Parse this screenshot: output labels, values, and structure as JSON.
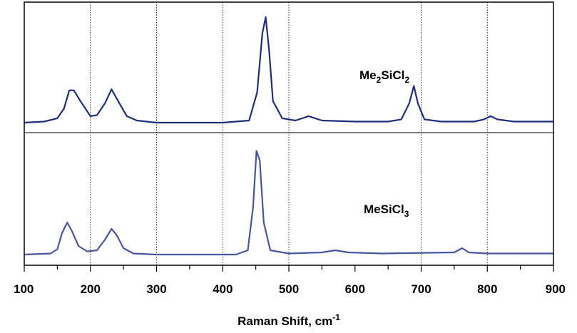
{
  "chart_data": {
    "type": "line",
    "title": "",
    "xlabel": "Raman Shift, cm",
    "xlabel_superscript": "-1",
    "ylabel": "",
    "xlim": [
      100,
      900
    ],
    "x_ticks": [
      "100",
      "200",
      "300",
      "400",
      "500",
      "600",
      "700",
      "800",
      "900"
    ],
    "grid": "vertical dotted lines at 200, 300, 400, 500, 700, 800",
    "series": [
      {
        "name": "Me2SiCl2",
        "label_parts": [
          "Me",
          "2",
          "SiCl",
          "2"
        ],
        "color": "#1f2f7a",
        "points": [
          [
            100,
            0.02
          ],
          [
            130,
            0.03
          ],
          [
            150,
            0.06
          ],
          [
            160,
            0.15
          ],
          [
            168,
            0.32
          ],
          [
            175,
            0.32
          ],
          [
            185,
            0.22
          ],
          [
            200,
            0.08
          ],
          [
            210,
            0.09
          ],
          [
            222,
            0.2
          ],
          [
            232,
            0.33
          ],
          [
            242,
            0.22
          ],
          [
            255,
            0.08
          ],
          [
            270,
            0.04
          ],
          [
            300,
            0.02
          ],
          [
            400,
            0.02
          ],
          [
            440,
            0.04
          ],
          [
            452,
            0.3
          ],
          [
            460,
            0.85
          ],
          [
            465,
            1.0
          ],
          [
            470,
            0.7
          ],
          [
            476,
            0.22
          ],
          [
            490,
            0.06
          ],
          [
            510,
            0.04
          ],
          [
            530,
            0.08
          ],
          [
            550,
            0.04
          ],
          [
            600,
            0.03
          ],
          [
            650,
            0.03
          ],
          [
            670,
            0.05
          ],
          [
            682,
            0.2
          ],
          [
            689,
            0.36
          ],
          [
            695,
            0.2
          ],
          [
            705,
            0.05
          ],
          [
            730,
            0.03
          ],
          [
            780,
            0.03
          ],
          [
            795,
            0.05
          ],
          [
            805,
            0.08
          ],
          [
            815,
            0.05
          ],
          [
            840,
            0.03
          ],
          [
            900,
            0.03
          ]
        ]
      },
      {
        "name": "MeSiCl3",
        "label_parts": [
          "MeSiCl",
          "3"
        ],
        "color": "#4a55a0",
        "points": [
          [
            100,
            0.0
          ],
          [
            140,
            0.01
          ],
          [
            150,
            0.05
          ],
          [
            157,
            0.2
          ],
          [
            165,
            0.3
          ],
          [
            172,
            0.22
          ],
          [
            182,
            0.08
          ],
          [
            195,
            0.03
          ],
          [
            210,
            0.04
          ],
          [
            222,
            0.14
          ],
          [
            232,
            0.24
          ],
          [
            240,
            0.18
          ],
          [
            250,
            0.06
          ],
          [
            265,
            0.01
          ],
          [
            300,
            0.0
          ],
          [
            420,
            0.0
          ],
          [
            438,
            0.04
          ],
          [
            446,
            0.45
          ],
          [
            451,
            0.97
          ],
          [
            456,
            0.88
          ],
          [
            462,
            0.3
          ],
          [
            472,
            0.04
          ],
          [
            500,
            0.01
          ],
          [
            550,
            0.02
          ],
          [
            570,
            0.04
          ],
          [
            590,
            0.02
          ],
          [
            640,
            0.01
          ],
          [
            750,
            0.02
          ],
          [
            762,
            0.06
          ],
          [
            772,
            0.02
          ],
          [
            800,
            0.01
          ],
          [
            900,
            0.01
          ]
        ]
      }
    ]
  }
}
